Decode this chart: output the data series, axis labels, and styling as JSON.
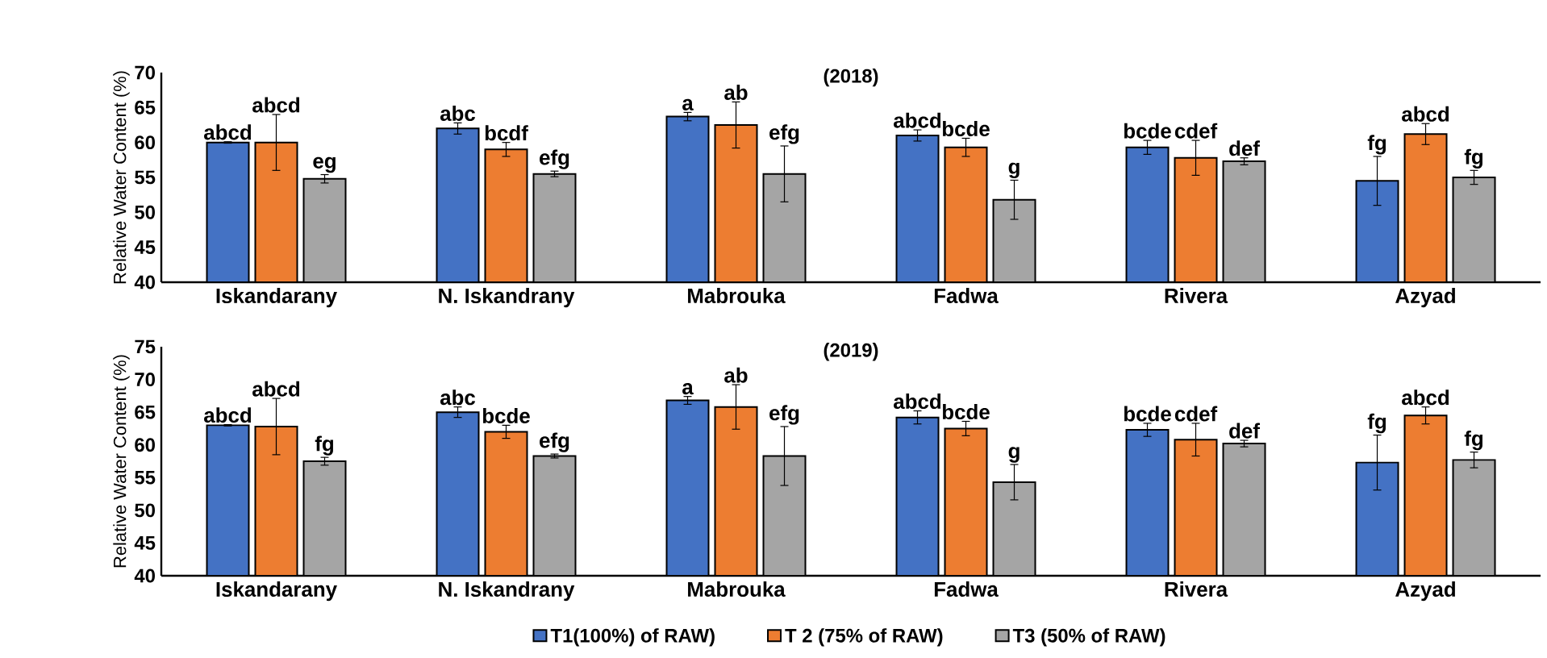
{
  "chart_data": [
    {
      "type": "bar",
      "title": "(2018)",
      "ylabel": "Relative Water Content  (%)",
      "categories": [
        "Iskandarany",
        "N. Iskandrany",
        "Mabrouka",
        "Fadwa",
        "Rivera",
        "Azyad"
      ],
      "ylim": [
        40,
        70
      ],
      "yticks": [
        40,
        45,
        50,
        55,
        60,
        65,
        70
      ],
      "series": [
        {
          "color": "#4472c4",
          "values": [
            60,
            62,
            63.7,
            61,
            59.3,
            54.5
          ],
          "errors": [
            0.1,
            0.8,
            0.6,
            0.8,
            1,
            3.5
          ],
          "value_labels": [
            "abcd",
            "abc",
            "a",
            "abcd",
            "bcde",
            "fg"
          ]
        },
        {
          "color": "#ed7d31",
          "values": [
            60,
            59,
            62.5,
            59.3,
            57.8,
            61.2
          ],
          "errors": [
            4,
            1,
            3.3,
            1.3,
            2.5,
            1.5
          ],
          "value_labels": [
            "abcd",
            "bcdf",
            "ab",
            "bcde",
            "cdef",
            "abcd"
          ]
        },
        {
          "color": "#a5a5a5",
          "values": [
            54.8,
            55.5,
            55.5,
            51.8,
            57.3,
            55
          ],
          "errors": [
            0.6,
            0.4,
            4,
            2.8,
            0.5,
            1
          ],
          "value_labels": [
            "eg",
            "efg",
            "efg",
            "g",
            "def",
            "fg"
          ]
        }
      ]
    },
    {
      "type": "bar",
      "title": "(2019)",
      "ylabel": "Relative Water Content  (%)",
      "categories": [
        "Iskandarany",
        "N. Iskandrany",
        "Mabrouka",
        "Fadwa",
        "Rivera",
        "Azyad"
      ],
      "ylim": [
        40,
        75
      ],
      "yticks": [
        40,
        45,
        50,
        55,
        60,
        65,
        70,
        75
      ],
      "legend": "bottom",
      "series": [
        {
          "name": "T1(100%)  of RAW)",
          "color": "#4472c4",
          "values": [
            63,
            65,
            66.8,
            64.2,
            62.3,
            57.3
          ],
          "errors": [
            0.1,
            0.8,
            0.6,
            1,
            1,
            4.2
          ],
          "value_labels": [
            "abcd",
            "abc",
            "a",
            "abcd",
            "bcde",
            "fg"
          ]
        },
        {
          "name": "T 2 (75%  of RAW)",
          "color": "#ed7d31",
          "values": [
            62.8,
            62,
            65.8,
            62.5,
            60.8,
            64.5
          ],
          "errors": [
            4.3,
            1,
            3.4,
            1.1,
            2.5,
            1.3
          ],
          "value_labels": [
            "abcd",
            "bcde",
            "ab",
            "bcde",
            "cdef",
            "abcd"
          ]
        },
        {
          "name": "T3 (50% of RAW)",
          "color": "#a5a5a5",
          "values": [
            57.5,
            58.3,
            58.3,
            54.3,
            60.2,
            57.7
          ],
          "errors": [
            0.6,
            0.3,
            4.5,
            2.7,
            0.5,
            1.2
          ],
          "value_labels": [
            "fg",
            "efg",
            "efg",
            "g",
            "def",
            "fg"
          ]
        }
      ]
    }
  ]
}
